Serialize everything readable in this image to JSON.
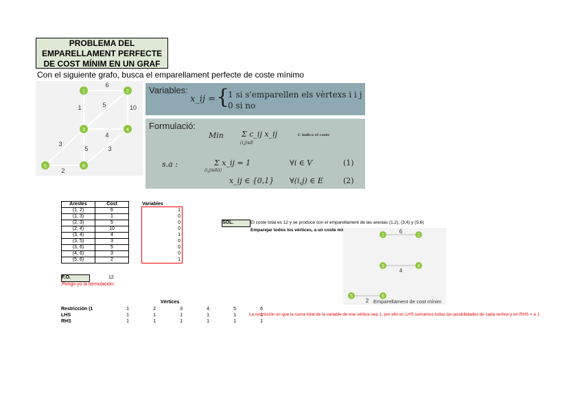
{
  "title": "PROBLEMA DEL EMPARELLAMENT PERFECTE DE COST MÍNIM EN UN GRAF",
  "subtitle": "Con el siguiente grafo, busca el emparellament perfecte de coste mínimo",
  "graph": {
    "node_color": "#8dc63f",
    "nodes": [
      "1",
      "2",
      "3",
      "4",
      "5",
      "6"
    ],
    "edges": [
      {
        "from": "1",
        "to": "2",
        "cost": "6"
      },
      {
        "from": "1",
        "to": "3",
        "cost": "1"
      },
      {
        "from": "2",
        "to": "3",
        "cost": "5"
      },
      {
        "from": "2",
        "to": "4",
        "cost": "10"
      },
      {
        "from": "3",
        "to": "4",
        "cost": "4"
      },
      {
        "from": "3",
        "to": "5",
        "cost": "3"
      },
      {
        "from": "3",
        "to": "6",
        "cost": "5"
      },
      {
        "from": "4",
        "to": "6",
        "cost": "3"
      },
      {
        "from": "5",
        "to": "6",
        "cost": "2"
      }
    ]
  },
  "variables_box": {
    "heading": "Variables:",
    "lhs": "x_ij =",
    "case1": "1 si s'emparellen els vèrtexs i i j",
    "case2": "0 si no"
  },
  "formulation": {
    "heading": "Formulació:",
    "min": "Min",
    "objective": "Σ c_ij x_ij",
    "obj_sub": "(i,j)∈E",
    "note": "C indica el coste",
    "sa": "s.a :",
    "c1": "Σ x_ij = 1",
    "c1_sub": "(i,j)∈δ(i)",
    "c1_cond": "∀i ∈ V",
    "c1_num": "(1)",
    "c2": "x_ij ∈ {0,1}",
    "c2_cond": "∀(i,j) ∈ E",
    "c2_num": "(2)"
  },
  "edges_table": {
    "headers": [
      "Arestes",
      "Cost"
    ],
    "rows": [
      [
        "(1, 2)",
        "6"
      ],
      [
        "(1, 3)",
        "1"
      ],
      [
        "(2, 3)",
        "5"
      ],
      [
        "(2, 4)",
        "10"
      ],
      [
        "(3, 4)",
        "4"
      ],
      [
        "(3, 5)",
        "3"
      ],
      [
        "(3, 6)",
        "5"
      ],
      [
        "(4, 6)",
        "3"
      ],
      [
        "(5, 6)",
        "2"
      ]
    ]
  },
  "variables": {
    "label": "Variables",
    "values": [
      "1",
      "0",
      "0",
      "0",
      "1",
      "0",
      "0",
      "0",
      "1"
    ]
  },
  "fo": {
    "label": "F.O.",
    "value": "12",
    "note": "Pongo yo la formulación."
  },
  "sol": {
    "label": "SOL.",
    "text": "El coste total es 12 y se produce con el emparellament de las arestas (1,2), (3,4) y (5,6)",
    "text2": "Emparejar todos los  vértices, a un coste mínimo"
  },
  "matching": {
    "edges": [
      {
        "from": "1",
        "to": "2",
        "cost": "6"
      },
      {
        "from": "3",
        "to": "4",
        "cost": "4"
      },
      {
        "from": "5",
        "to": "6",
        "cost": "2"
      }
    ],
    "caption": "Emparellament de cost mínim"
  },
  "constraints": {
    "header": "Vèrtices",
    "rows": [
      [
        "Restricción (1",
        "1",
        "2",
        "3",
        "4",
        "5",
        "6"
      ],
      [
        "LHS",
        "1",
        "1",
        "1",
        "1",
        "1",
        "1"
      ],
      [
        "RHS",
        "1",
        "1",
        "1",
        "1",
        "1",
        "1"
      ]
    ],
    "note": "La restricción es que la suma total de la variable de ese vértice sea 1, por ello en LHS sumamos todas las posibilidades de cada vertice y en RHS = a 1"
  }
}
